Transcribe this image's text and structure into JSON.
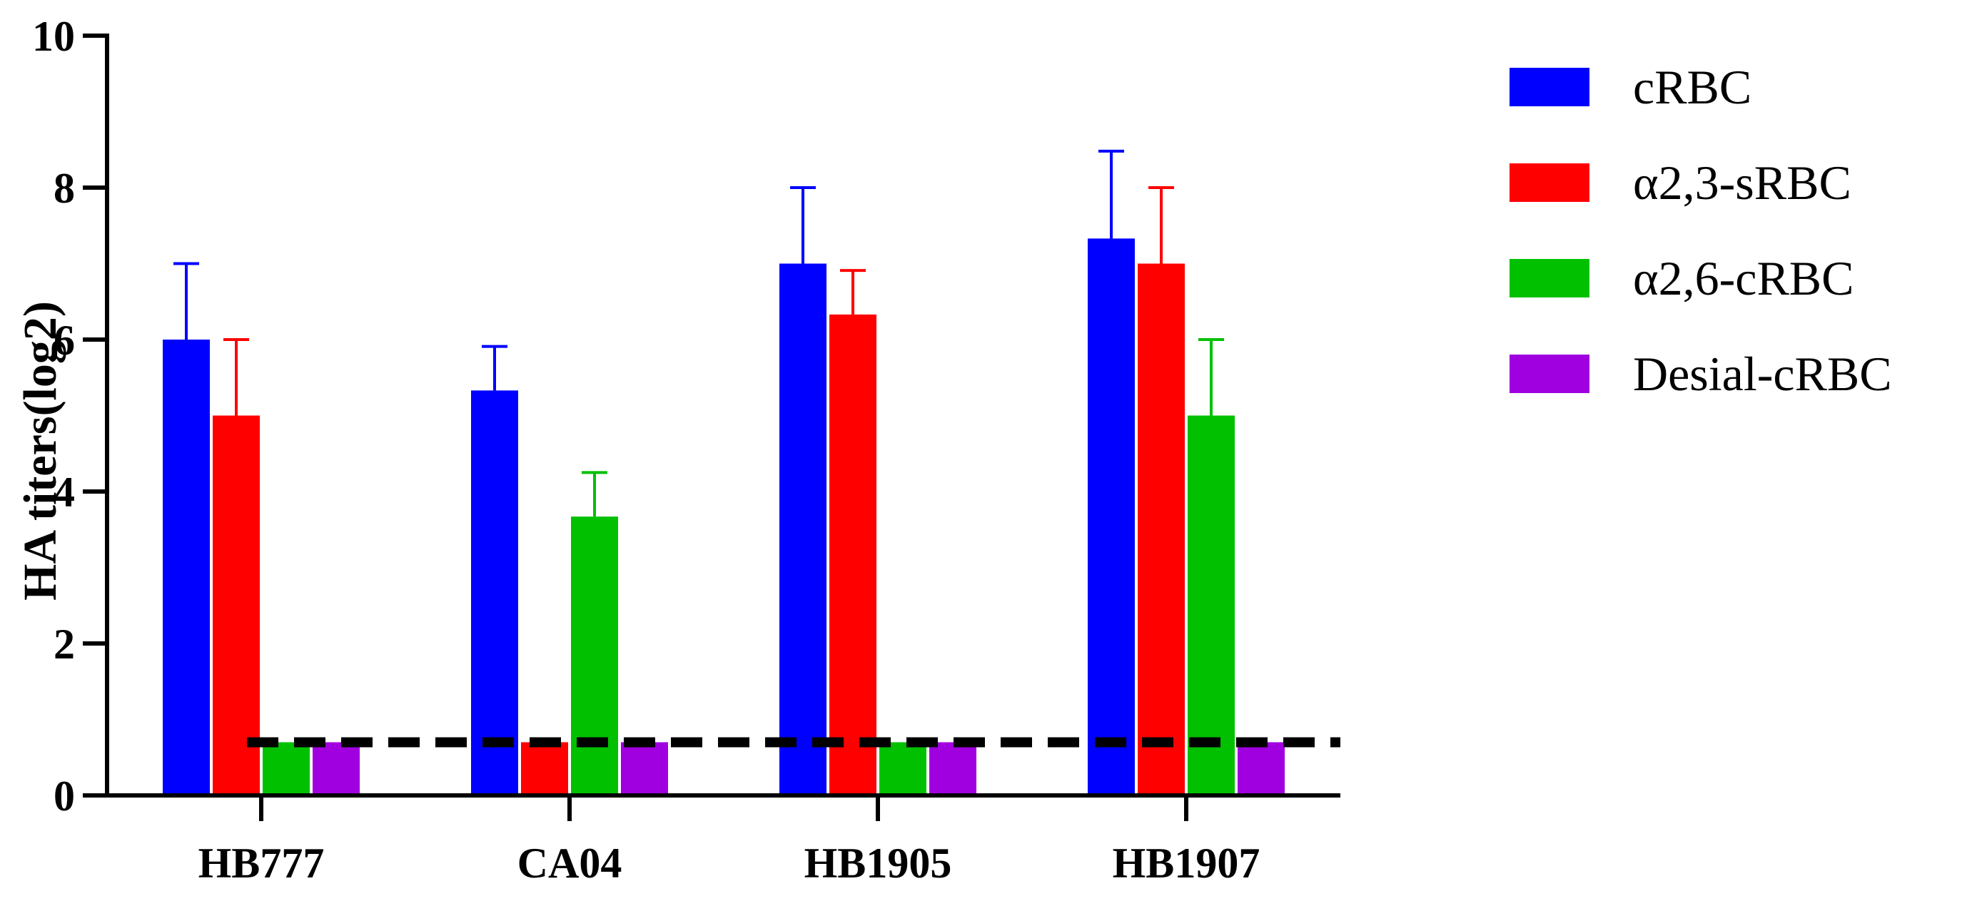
{
  "chart_data": {
    "type": "bar",
    "ylabel": "HA titers(log2)",
    "xlabel": "",
    "ylim": [
      0,
      10
    ],
    "yticks": [
      0,
      2,
      4,
      6,
      8,
      10
    ],
    "categories": [
      "HB777",
      "CA04",
      "HB1905",
      "HB1907"
    ],
    "series": [
      {
        "name": "cRBC",
        "color": "#0000ff",
        "values": [
          6.0,
          5.33,
          7.0,
          7.33
        ],
        "error": [
          1.0,
          0.58,
          1.0,
          1.15
        ]
      },
      {
        "name": "α2,3-sRBC",
        "color": "#ff0000",
        "values": [
          5.0,
          0.7,
          6.33,
          7.0
        ],
        "error": [
          1.0,
          0,
          0.58,
          1.0
        ]
      },
      {
        "name": "α2,6-cRBC",
        "color": "#00c000",
        "values": [
          0.7,
          3.67,
          0.7,
          5.0
        ],
        "error": [
          0,
          0.58,
          0,
          1.0
        ]
      },
      {
        "name": "Desial-cRBC",
        "color": "#a000e0",
        "values": [
          0.7,
          0.7,
          0.7,
          0.7
        ],
        "error": [
          0,
          0,
          0,
          0
        ]
      }
    ],
    "reference_line": {
      "y": 0.7,
      "style": "dashed",
      "color": "#000000"
    },
    "legend_position": "right",
    "grid": false
  }
}
